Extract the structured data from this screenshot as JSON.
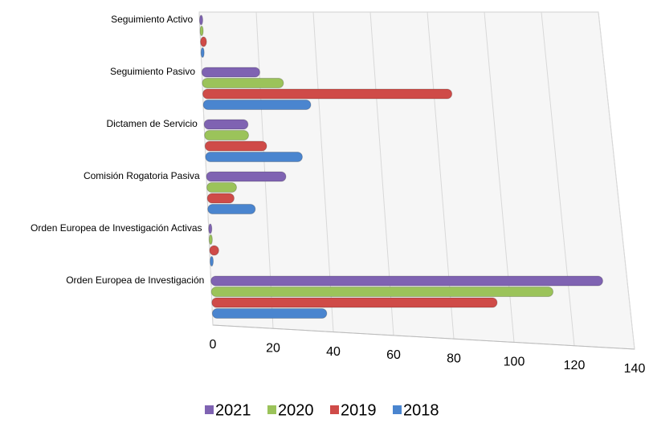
{
  "chart_data": {
    "type": "bar",
    "orientation": "horizontal",
    "categories": [
      "Seguimiento Activo",
      "Seguimiento Pasivo",
      "Dictamen de Servicio",
      "Comisión Rogatoria Pasiva",
      "Orden Europea de Investigación Activas",
      "Orden Europea de Investigación"
    ],
    "series": [
      {
        "name": "2021",
        "color": "#7f63b2",
        "values": [
          0,
          19,
          14,
          26,
          0,
          130
        ]
      },
      {
        "name": "2020",
        "color": "#9bc35a",
        "values": [
          0,
          27,
          14,
          9,
          0,
          113
        ]
      },
      {
        "name": "2019",
        "color": "#cf4b48",
        "values": [
          1,
          85,
          20,
          8,
          2,
          94
        ]
      },
      {
        "name": "2018",
        "color": "#4a85cf",
        "values": [
          0,
          36,
          32,
          15,
          0,
          37
        ]
      }
    ],
    "xlim": [
      0,
      140
    ],
    "xticks": [
      0,
      20,
      40,
      60,
      80,
      100,
      120,
      140
    ],
    "grid": true,
    "legend": "bottom"
  }
}
